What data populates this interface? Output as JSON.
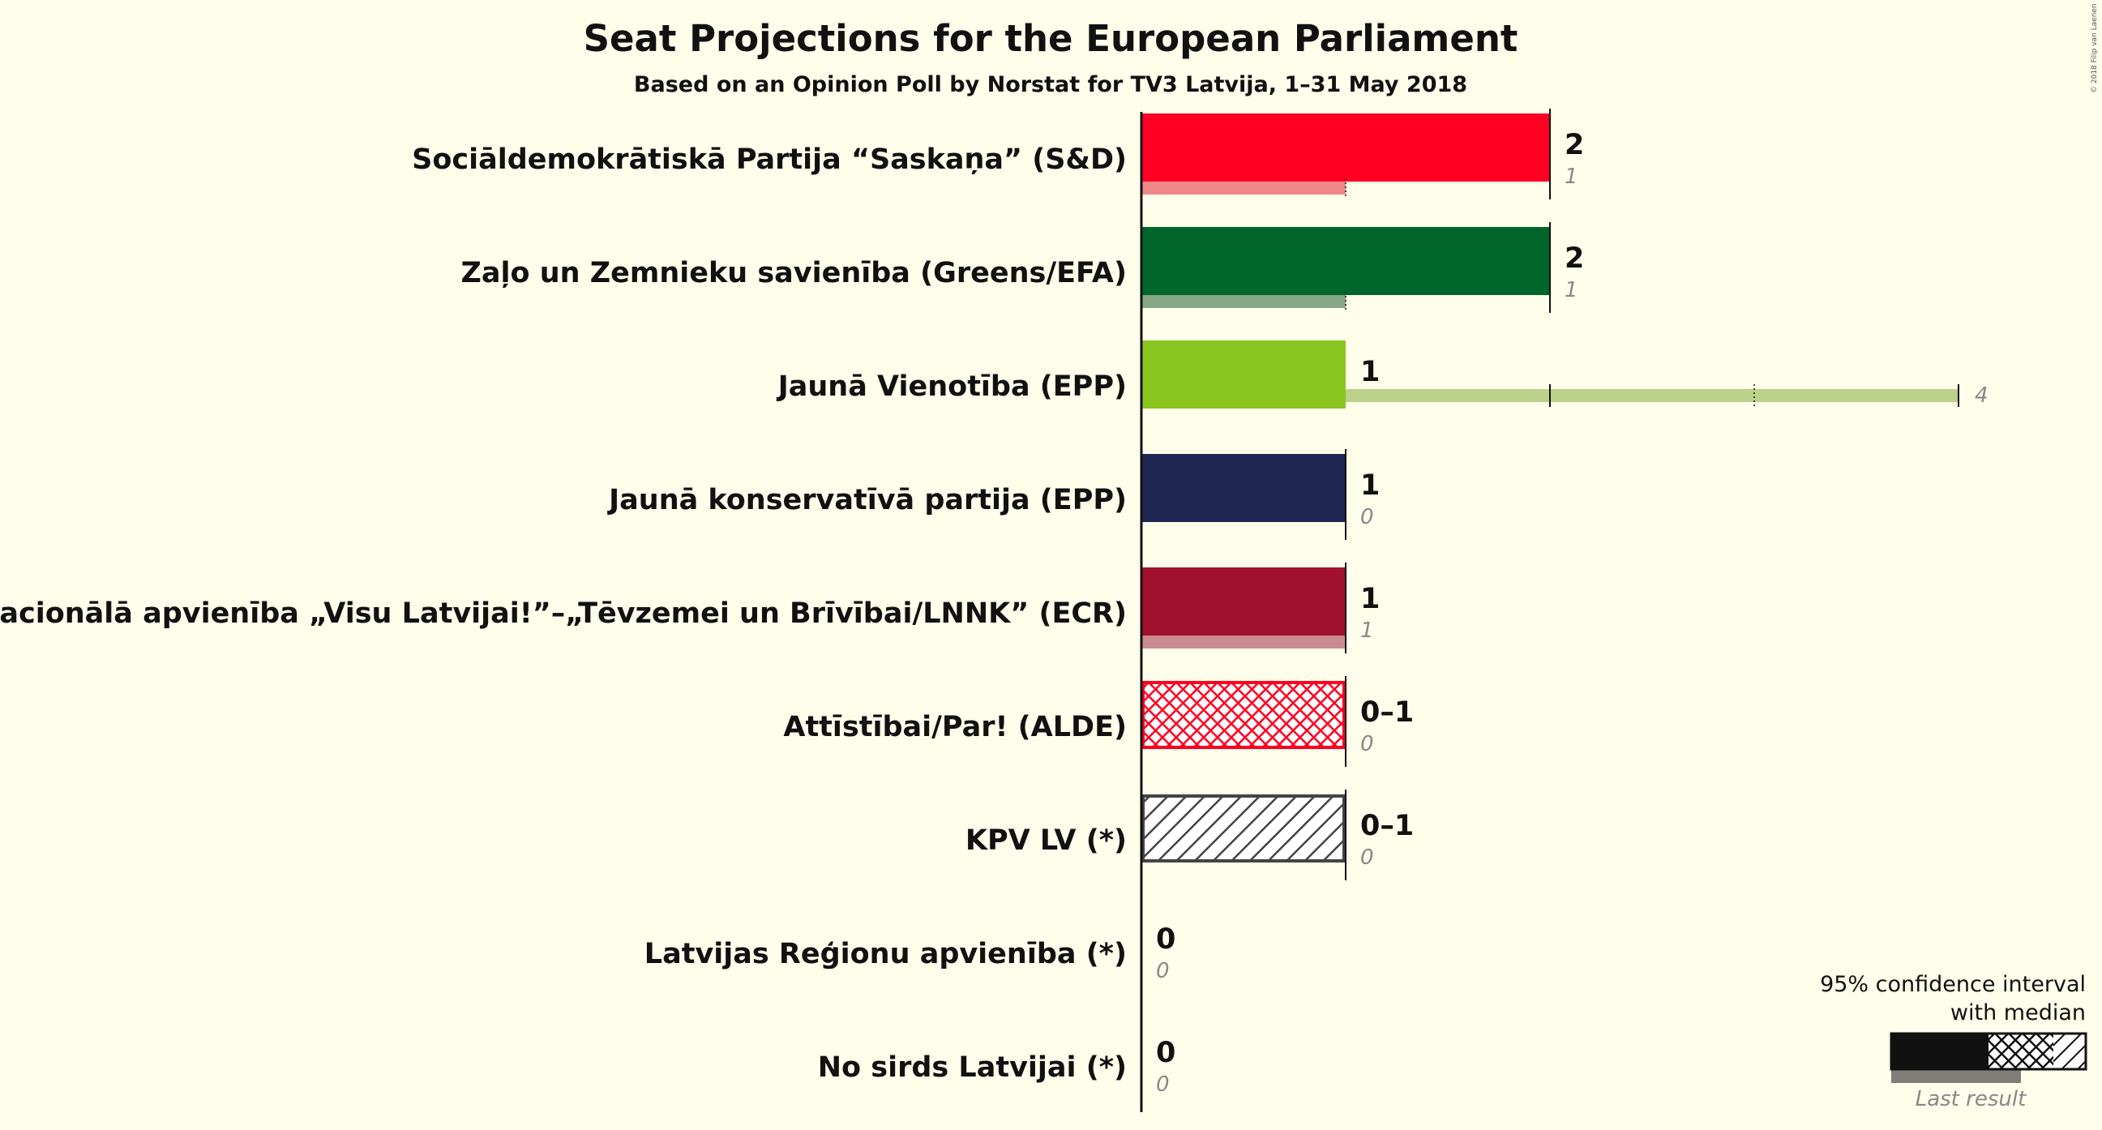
{
  "title": "Seat Projections for the European Parliament",
  "subtitle": "Based on an Opinion Poll by Norstat for TV3 Latvija, 1–31 May 2018",
  "copyright": "© 2018 Filip van Laenen",
  "legend": {
    "line1": "95% confidence interval",
    "line2": "with median",
    "last_result": "Last result"
  },
  "colors": {
    "background": "#fffeeb",
    "axis": "#111111"
  },
  "chart_data": {
    "type": "bar",
    "orientation": "horizontal",
    "x_unit": "seats",
    "xlim": [
      0,
      4
    ],
    "parties": [
      {
        "name": "Sociāldemokrātiskā Partija “Saskaņa” (S&D)",
        "low": 2,
        "median": 2,
        "high": 2,
        "projection_label": "2",
        "last": 1,
        "last_label": "1",
        "pattern": "solid",
        "color": "#ff0022",
        "last_color": "#ee8888"
      },
      {
        "name": "Zaļo un Zemnieku savienība (Greens/EFA)",
        "low": 2,
        "median": 2,
        "high": 2,
        "projection_label": "2",
        "last": 1,
        "last_label": "1",
        "pattern": "solid",
        "color": "#006629",
        "last_color": "#88a888"
      },
      {
        "name": "Jaunā Vienotība (EPP)",
        "low": 1,
        "median": 1,
        "high": 1,
        "projection_label": "1",
        "last": 4,
        "last_label": "4",
        "pattern": "solid",
        "color": "#8ac620",
        "last_color": "#bcd189"
      },
      {
        "name": "Jaunā konservatīvā partija (EPP)",
        "low": 1,
        "median": 1,
        "high": 1,
        "projection_label": "1",
        "last": 0,
        "last_label": "0",
        "pattern": "solid",
        "color": "#1d2551",
        "last_color": "#888888"
      },
      {
        "name": "Nacionālā apvienība „Visu Latvijai!”–„Tēvzemei un Brīvībai/LNNK” (ECR)",
        "low": 1,
        "median": 1,
        "high": 1,
        "projection_label": "1",
        "last": 1,
        "last_label": "1",
        "pattern": "solid",
        "color": "#a2112f",
        "last_color": "#c98a90"
      },
      {
        "name": "Attīstībai/Par! (ALDE)",
        "low": 0,
        "median": 0,
        "high": 1,
        "projection_label": "0–1",
        "last": 0,
        "last_label": "0",
        "pattern": "crosshatch",
        "color": "#ff0022",
        "last_color": "#888888"
      },
      {
        "name": "KPV LV (*)",
        "low": 0,
        "median": 0,
        "high": 1,
        "projection_label": "0–1",
        "last": 0,
        "last_label": "0",
        "pattern": "diagonal",
        "color": "#444444",
        "last_color": "#888888"
      },
      {
        "name": "Latvijas Reģionu apvienība (*)",
        "low": 0,
        "median": 0,
        "high": 0,
        "projection_label": "0",
        "last": 0,
        "last_label": "0",
        "pattern": "solid",
        "color": "#888888",
        "last_color": "#888888"
      },
      {
        "name": "No sirds Latvijai (*)",
        "low": 0,
        "median": 0,
        "high": 0,
        "projection_label": "0",
        "last": 0,
        "last_label": "0",
        "pattern": "solid",
        "color": "#888888",
        "last_color": "#888888"
      }
    ]
  }
}
